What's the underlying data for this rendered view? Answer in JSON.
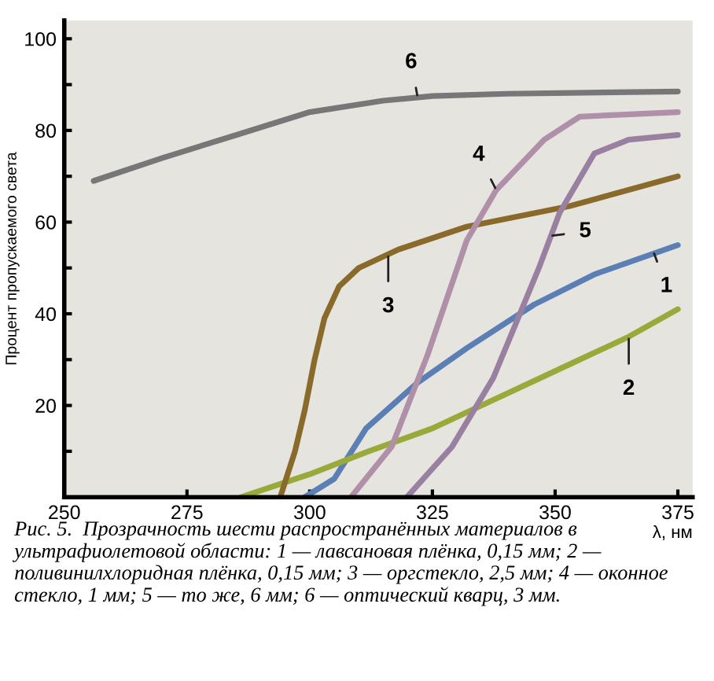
{
  "chart_data": {
    "type": "line",
    "xlabel": "λ, нм",
    "ylabel": "Процент пропускаемого света",
    "xlim": [
      250,
      378
    ],
    "ylim": [
      0,
      104
    ],
    "xticks": [
      250,
      275,
      300,
      325,
      350,
      375
    ],
    "yticks": [
      {
        "value": 0,
        "label": null
      },
      {
        "value": 10,
        "label": null
      },
      20,
      {
        "value": 30,
        "label": null
      },
      40,
      {
        "value": 50,
        "label": null
      },
      60,
      {
        "value": 70,
        "label": null
      },
      80,
      {
        "value": 90,
        "label": null
      },
      100
    ],
    "grid": false,
    "legend": false,
    "marker": "none",
    "line_style": "solid",
    "series": [
      {
        "color": "#5b7fb5",
        "x": [
          299,
          305,
          311.5,
          322,
          332,
          345.7,
          358,
          375
        ],
        "values": [
          0,
          4,
          15,
          25,
          32.5,
          42,
          48.6,
          55
        ]
      },
      {
        "color": "#9aaa3a",
        "x": [
          286,
          300,
          312,
          325,
          337,
          353,
          365,
          375
        ],
        "values": [
          0,
          5,
          10,
          15,
          21,
          29,
          35,
          41
        ]
      },
      {
        "color": "#8a6a2a",
        "x": [
          294,
          297,
          299,
          301,
          303,
          306,
          310,
          318,
          332,
          353,
          375
        ],
        "values": [
          0,
          10,
          19,
          30,
          39,
          46,
          50,
          54,
          59,
          63.5,
          70
        ]
      },
      {
        "color": "#b090a8",
        "x": [
          308.4,
          316.7,
          324,
          332,
          338,
          347.8,
          355,
          375
        ],
        "values": [
          0,
          11,
          31,
          56,
          67,
          78,
          83,
          84
        ]
      },
      {
        "color": "#9a80a0",
        "x": [
          319.8,
          329,
          337.4,
          346.7,
          350.9,
          358,
          365,
          375
        ],
        "values": [
          0,
          11,
          26,
          50,
          62,
          75,
          78,
          79
        ]
      },
      {
        "color": "#777777",
        "x": [
          256,
          270,
          285,
          300,
          315,
          325,
          340,
          375
        ],
        "values": [
          69,
          74,
          79,
          84,
          86.5,
          87.5,
          88,
          88.5
        ]
      }
    ],
    "annotations": [
      {
        "text": "1",
        "x": 370,
        "y": 53.6
      },
      {
        "text": "2",
        "x": 365,
        "y": 35
      },
      {
        "text": "3",
        "x": 316,
        "y": 53
      },
      {
        "text": "4",
        "x": 338,
        "y": 67
      },
      {
        "text": "5",
        "x": 349,
        "y": 57
      },
      {
        "text": "6",
        "x": 322,
        "y": 87.2
      },
      "Рис. 5.  Прозрачность шести распространённых материалов в ультрафиолетовой области: 1 — лавсановая плёнка, 0,15 мм; 2 — поливинилхлоридная плёнка, 0,15 мм; 3 — оргстекло, 2,5 мм; 4 — оконное стекло, 1 мм; 5 — то же, 6 мм; 6 — оптический кварц, 3 мм."
    ]
  }
}
